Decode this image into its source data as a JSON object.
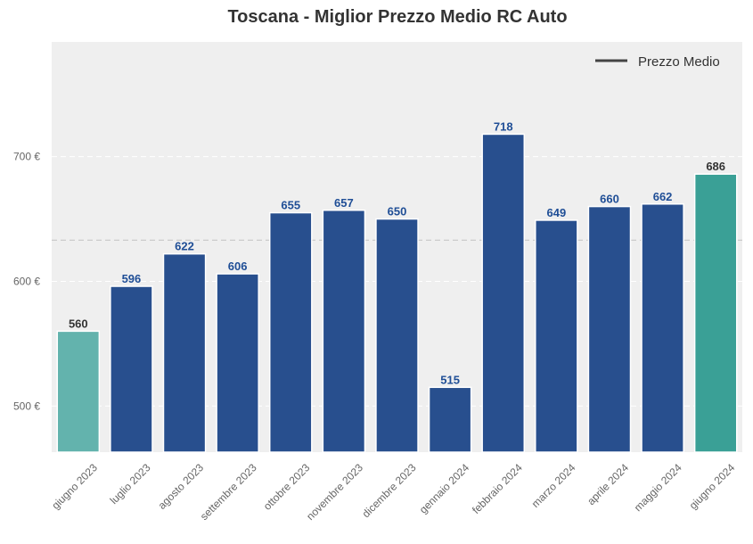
{
  "chart_data": {
    "type": "bar",
    "title": "Toscana - Miglior Prezzo Medio RC Auto",
    "xlabel": "",
    "ylabel": "",
    "categories": [
      "giugno 2023",
      "luglio 2023",
      "agosto 2023",
      "settembre 2023",
      "ottobre 2023",
      "novembre 2023",
      "dicembre 2023",
      "gennaio 2024",
      "febbraio 2024",
      "marzo 2024",
      "aprile 2024",
      "maggio 2024",
      "giugno 2024"
    ],
    "values": [
      560,
      596,
      622,
      606,
      655,
      657,
      650,
      515,
      718,
      649,
      660,
      662,
      686
    ],
    "value_labels": [
      "560",
      "596",
      "622",
      "606",
      "655",
      "657",
      "650",
      "515",
      "718",
      "649",
      "660",
      "662",
      "686"
    ],
    "ylim": [
      463,
      792
    ],
    "yticks": [
      500,
      600,
      700
    ],
    "ytick_labels": [
      "500 €",
      "600 €",
      "700 €"
    ],
    "average_line": 633,
    "legend": {
      "label": "Prezzo Medio",
      "placement": "top-right"
    },
    "grid": true,
    "colors": {
      "default_bar": "#284f8e",
      "first_bar": "#63b3ad",
      "last_bar": "#3aa096",
      "default_label": "#1f4e96",
      "highlight_label": "#333333",
      "plot_bg": "#efefef",
      "average_line": "#c8c8c8",
      "legend_line": "#444444"
    }
  }
}
